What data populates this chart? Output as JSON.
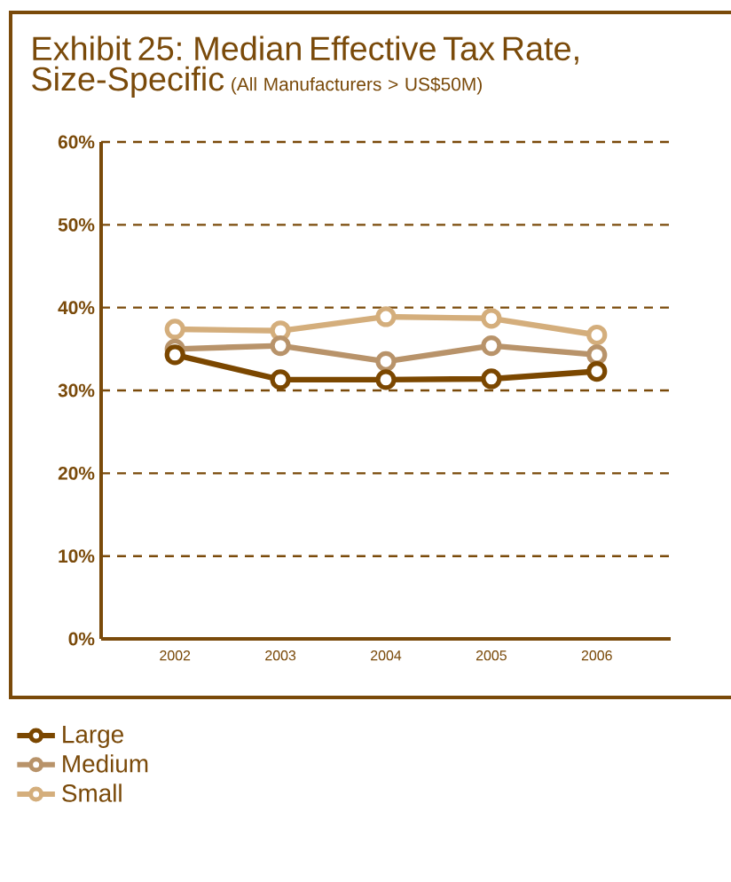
{
  "chart_data": {
    "type": "line",
    "title": "Exhibit 25: Median Effective Tax Rate, Size-Specific",
    "subtitle": "(All Manufacturers > US$50M)",
    "categories": [
      "2002",
      "2003",
      "2004",
      "2005",
      "2006"
    ],
    "series": [
      {
        "name": "Large",
        "color": "#7b4700",
        "values": [
          34.3,
          31.3,
          31.3,
          31.4,
          32.3
        ]
      },
      {
        "name": "Medium",
        "color": "#b8936a",
        "values": [
          35.0,
          35.4,
          33.5,
          35.4,
          34.3
        ]
      },
      {
        "name": "Small",
        "color": "#d4ae7c",
        "values": [
          37.4,
          37.2,
          38.9,
          38.7,
          36.7
        ]
      }
    ],
    "ylim": [
      0,
      60
    ],
    "yticks": [
      {
        "value": 0,
        "label": "0%"
      },
      {
        "value": 10,
        "label": "10%"
      },
      {
        "value": 20,
        "label": "20%"
      },
      {
        "value": 30,
        "label": "30%"
      },
      {
        "value": 40,
        "label": "40%"
      },
      {
        "value": 50,
        "label": "50%"
      },
      {
        "value": 60,
        "label": "60%"
      }
    ],
    "grid": "y",
    "legend": "bottom",
    "marker": "circle",
    "line_style": "solid"
  }
}
